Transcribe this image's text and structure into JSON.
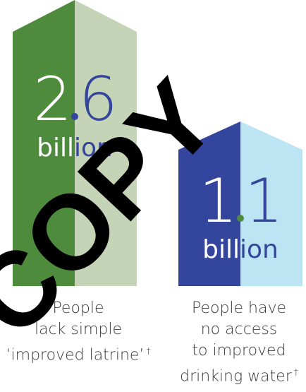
{
  "colors": {
    "latrine_dark": "#4e8b3d",
    "latrine_light": "#c5d3b7",
    "water_dark": "#33459c",
    "water_light": "#bde4f2",
    "white": "#ffffff",
    "watermark": "#000000",
    "caption": "#3a3a3a"
  },
  "sanitation": {
    "whole": "2",
    "decimal": "6",
    "unit_part1": "bill",
    "unit_part2": "ion",
    "caption_line1": "People",
    "caption_line2": "lack simple",
    "caption_line3": "‘improved latrine’",
    "footnote_mark": "†"
  },
  "water": {
    "whole": "1",
    "decimal": "1",
    "unit_part1": "bill",
    "unit_part2": "ion",
    "caption_line1": "People have",
    "caption_line2": "no access",
    "caption_line3": "to improved",
    "caption_line4": "drinking water",
    "footnote_mark": "†"
  },
  "watermark": {
    "text": "COPY"
  }
}
